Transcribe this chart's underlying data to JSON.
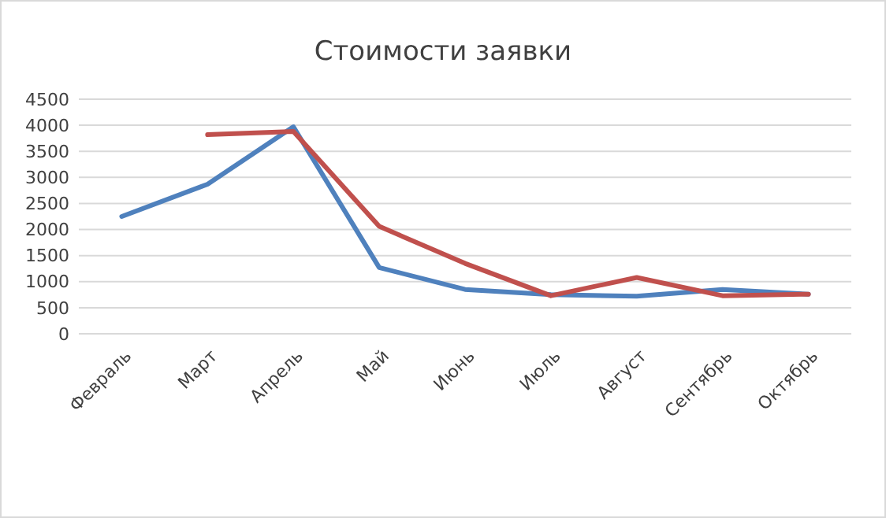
{
  "chart_data": {
    "type": "line",
    "title": "Стоимости заявки",
    "categories": [
      "Февраль",
      "Март",
      "Апрель",
      "Май",
      "Июнь",
      "Июль",
      "Август",
      "Сентябрь",
      "Октябрь"
    ],
    "series": [
      {
        "color": "#4f81bd",
        "values": [
          2250,
          2870,
          3970,
          1270,
          850,
          750,
          720,
          850,
          760
        ]
      },
      {
        "color": "#c0504d",
        "values": [
          null,
          3820,
          3880,
          2060,
          1350,
          730,
          1080,
          730,
          760
        ]
      }
    ],
    "ylim": [
      0,
      4500
    ],
    "yticks": [
      0,
      500,
      1000,
      1500,
      2000,
      2500,
      3000,
      3500,
      4000,
      4500
    ],
    "grid": "y",
    "marker": "none",
    "line_style": "solid"
  }
}
